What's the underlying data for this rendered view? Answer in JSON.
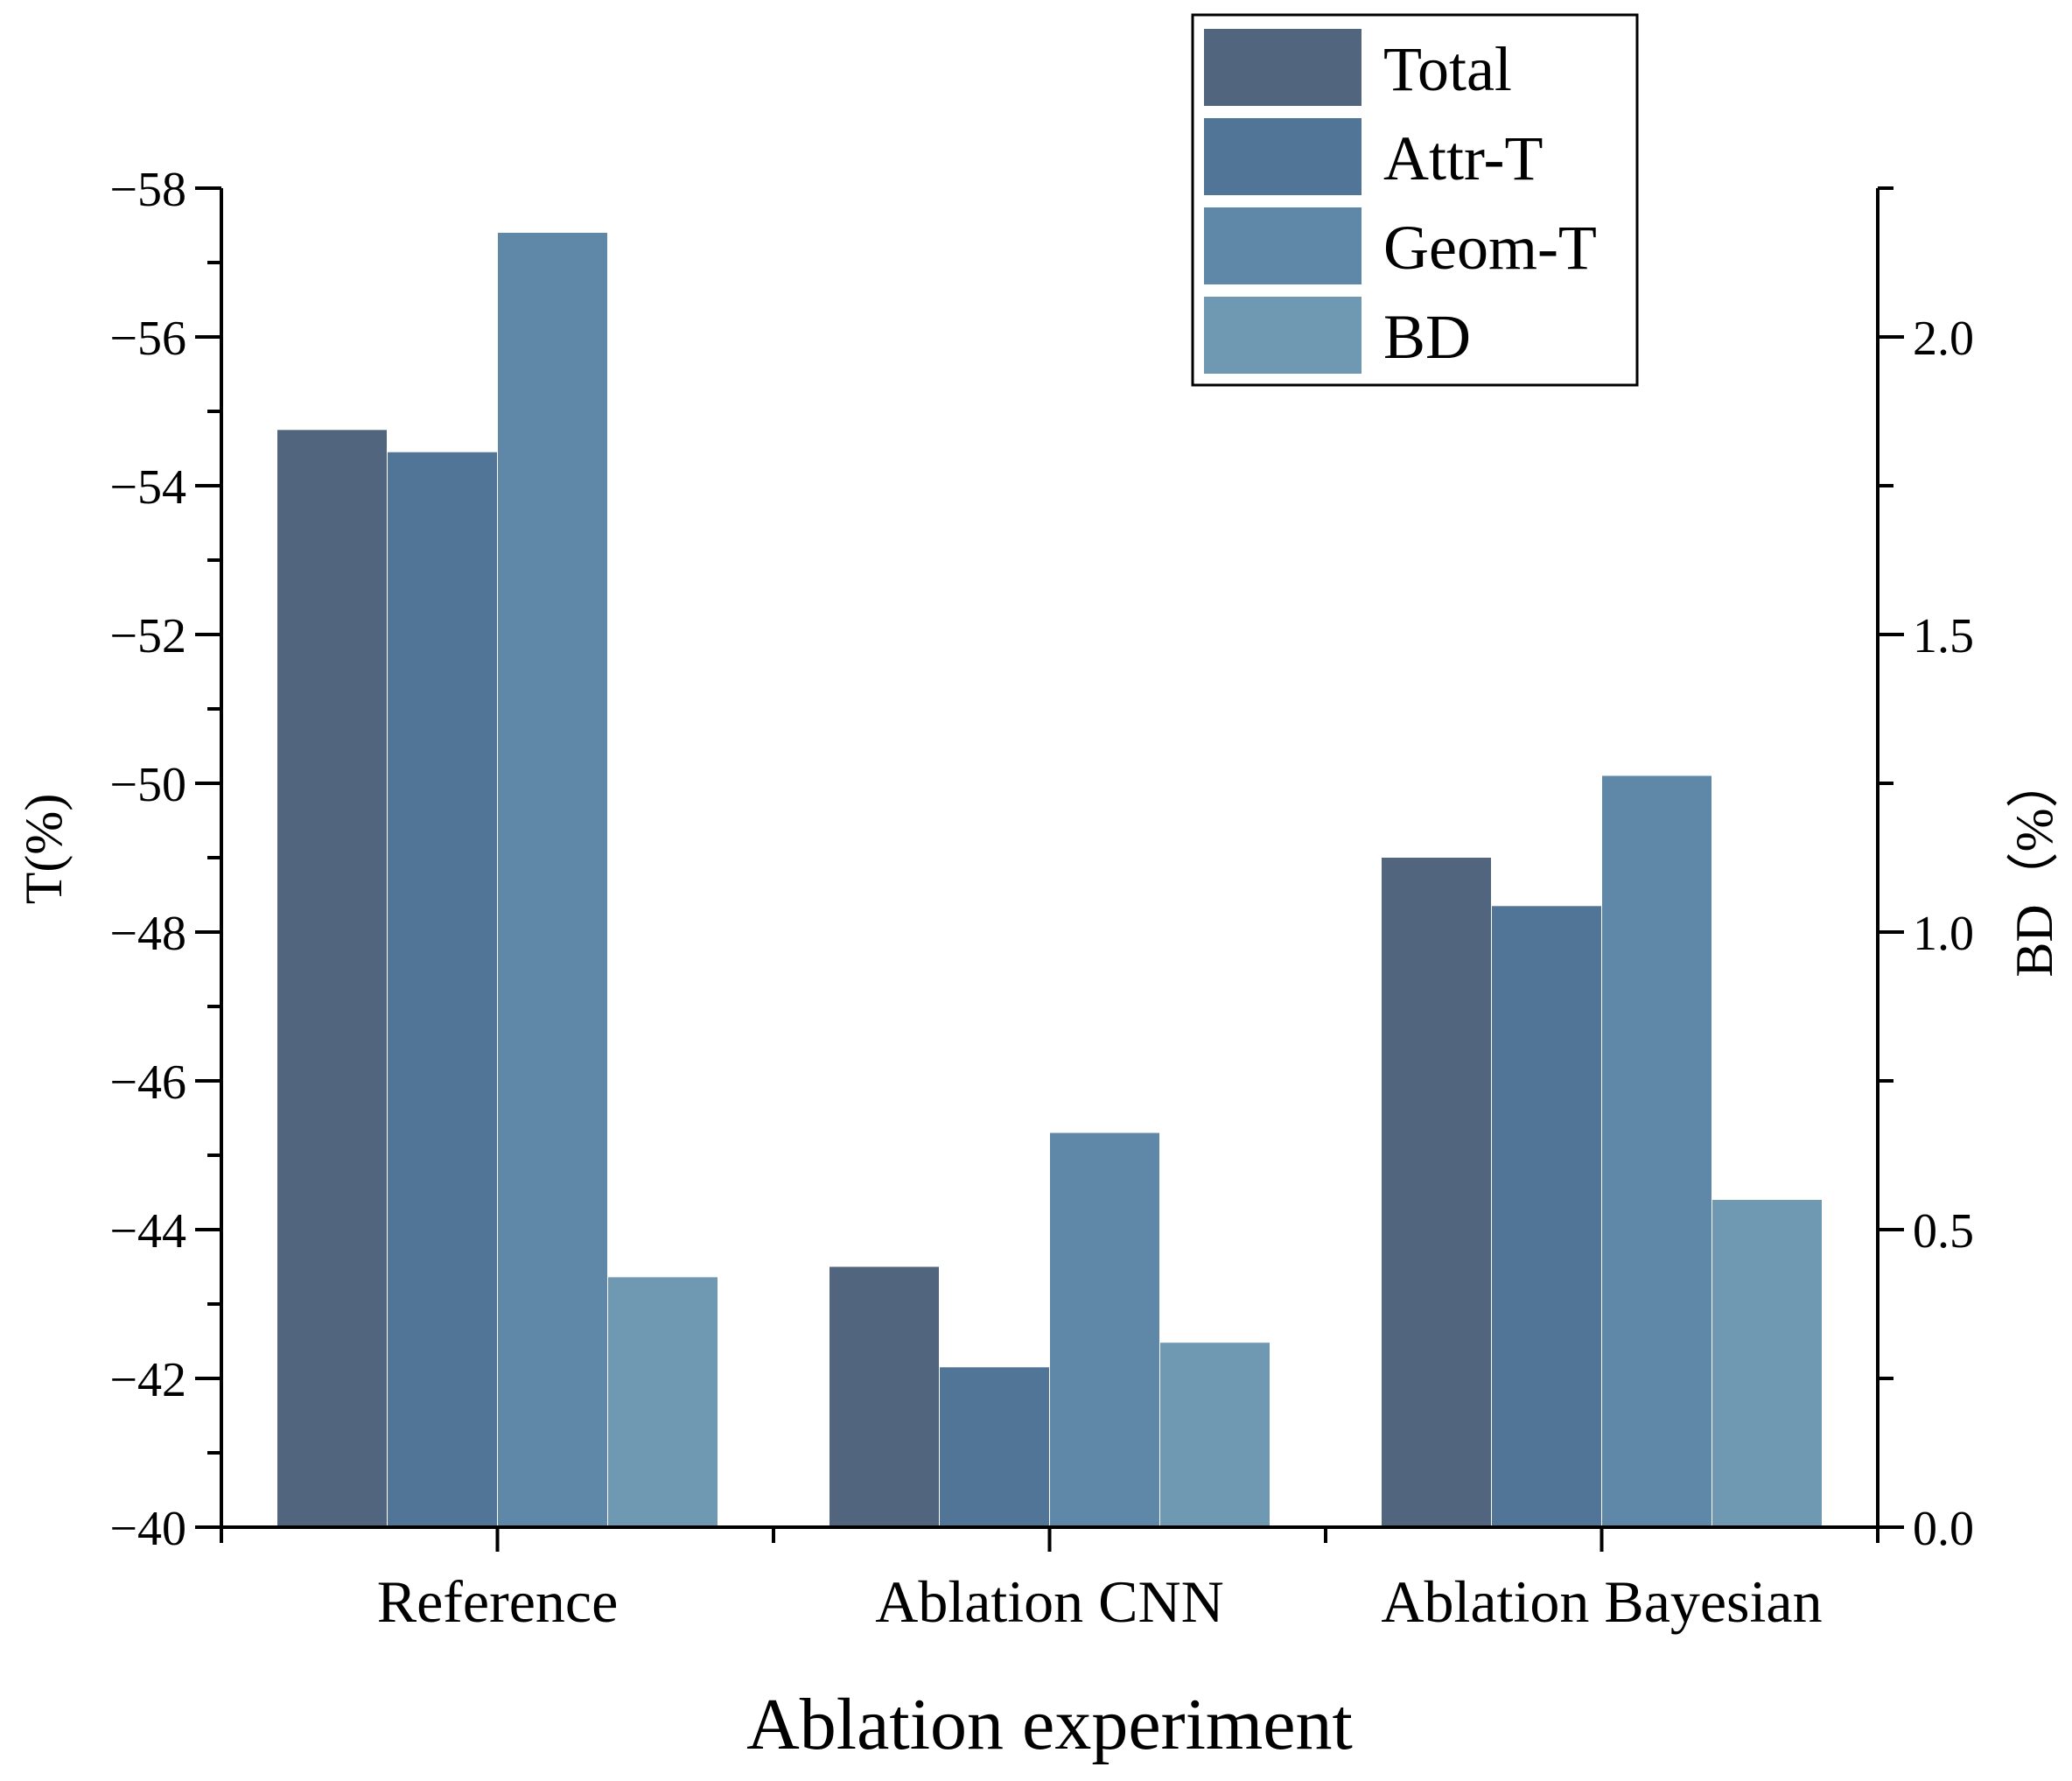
{
  "chart_data": {
    "type": "bar",
    "title": "",
    "xlabel": "Ablation experiment",
    "ylabel": "T(%)",
    "y2label": "BD（%）",
    "categories": [
      "Reference",
      "Ablation CNN",
      "Ablation Bayesian"
    ],
    "ylim": [
      -40,
      -58
    ],
    "y2lim": [
      0,
      2.25
    ],
    "yticks": [
      -40,
      -42,
      -44,
      -46,
      -48,
      -50,
      -52,
      -54,
      -56,
      -58
    ],
    "ytick_labels": [
      "−40",
      "−42",
      "−44",
      "−46",
      "−48",
      "−50",
      "−52",
      "−54",
      "−56",
      "−58"
    ],
    "y2ticks": [
      0.0,
      0.5,
      1.0,
      1.5,
      2.0
    ],
    "y2tick_labels": [
      "0.0",
      "0.5",
      "1.0",
      "1.5",
      "2.0"
    ],
    "grid": false,
    "legend_position": "top-right",
    "series": [
      {
        "name": "Total",
        "axis": "left",
        "color": "#52657f",
        "values": [
          -54.75,
          -43.5,
          -49.0
        ]
      },
      {
        "name": "Attr-T",
        "axis": "left",
        "color": "#517597",
        "values": [
          -54.45,
          -42.15,
          -48.35
        ]
      },
      {
        "name": "Geom-T",
        "axis": "left",
        "color": "#5f88a8",
        "values": [
          -57.4,
          -45.3,
          -50.1
        ]
      },
      {
        "name": "BD",
        "axis": "right",
        "color": "#6f98b3",
        "values": [
          0.42,
          0.31,
          0.55
        ]
      }
    ]
  }
}
